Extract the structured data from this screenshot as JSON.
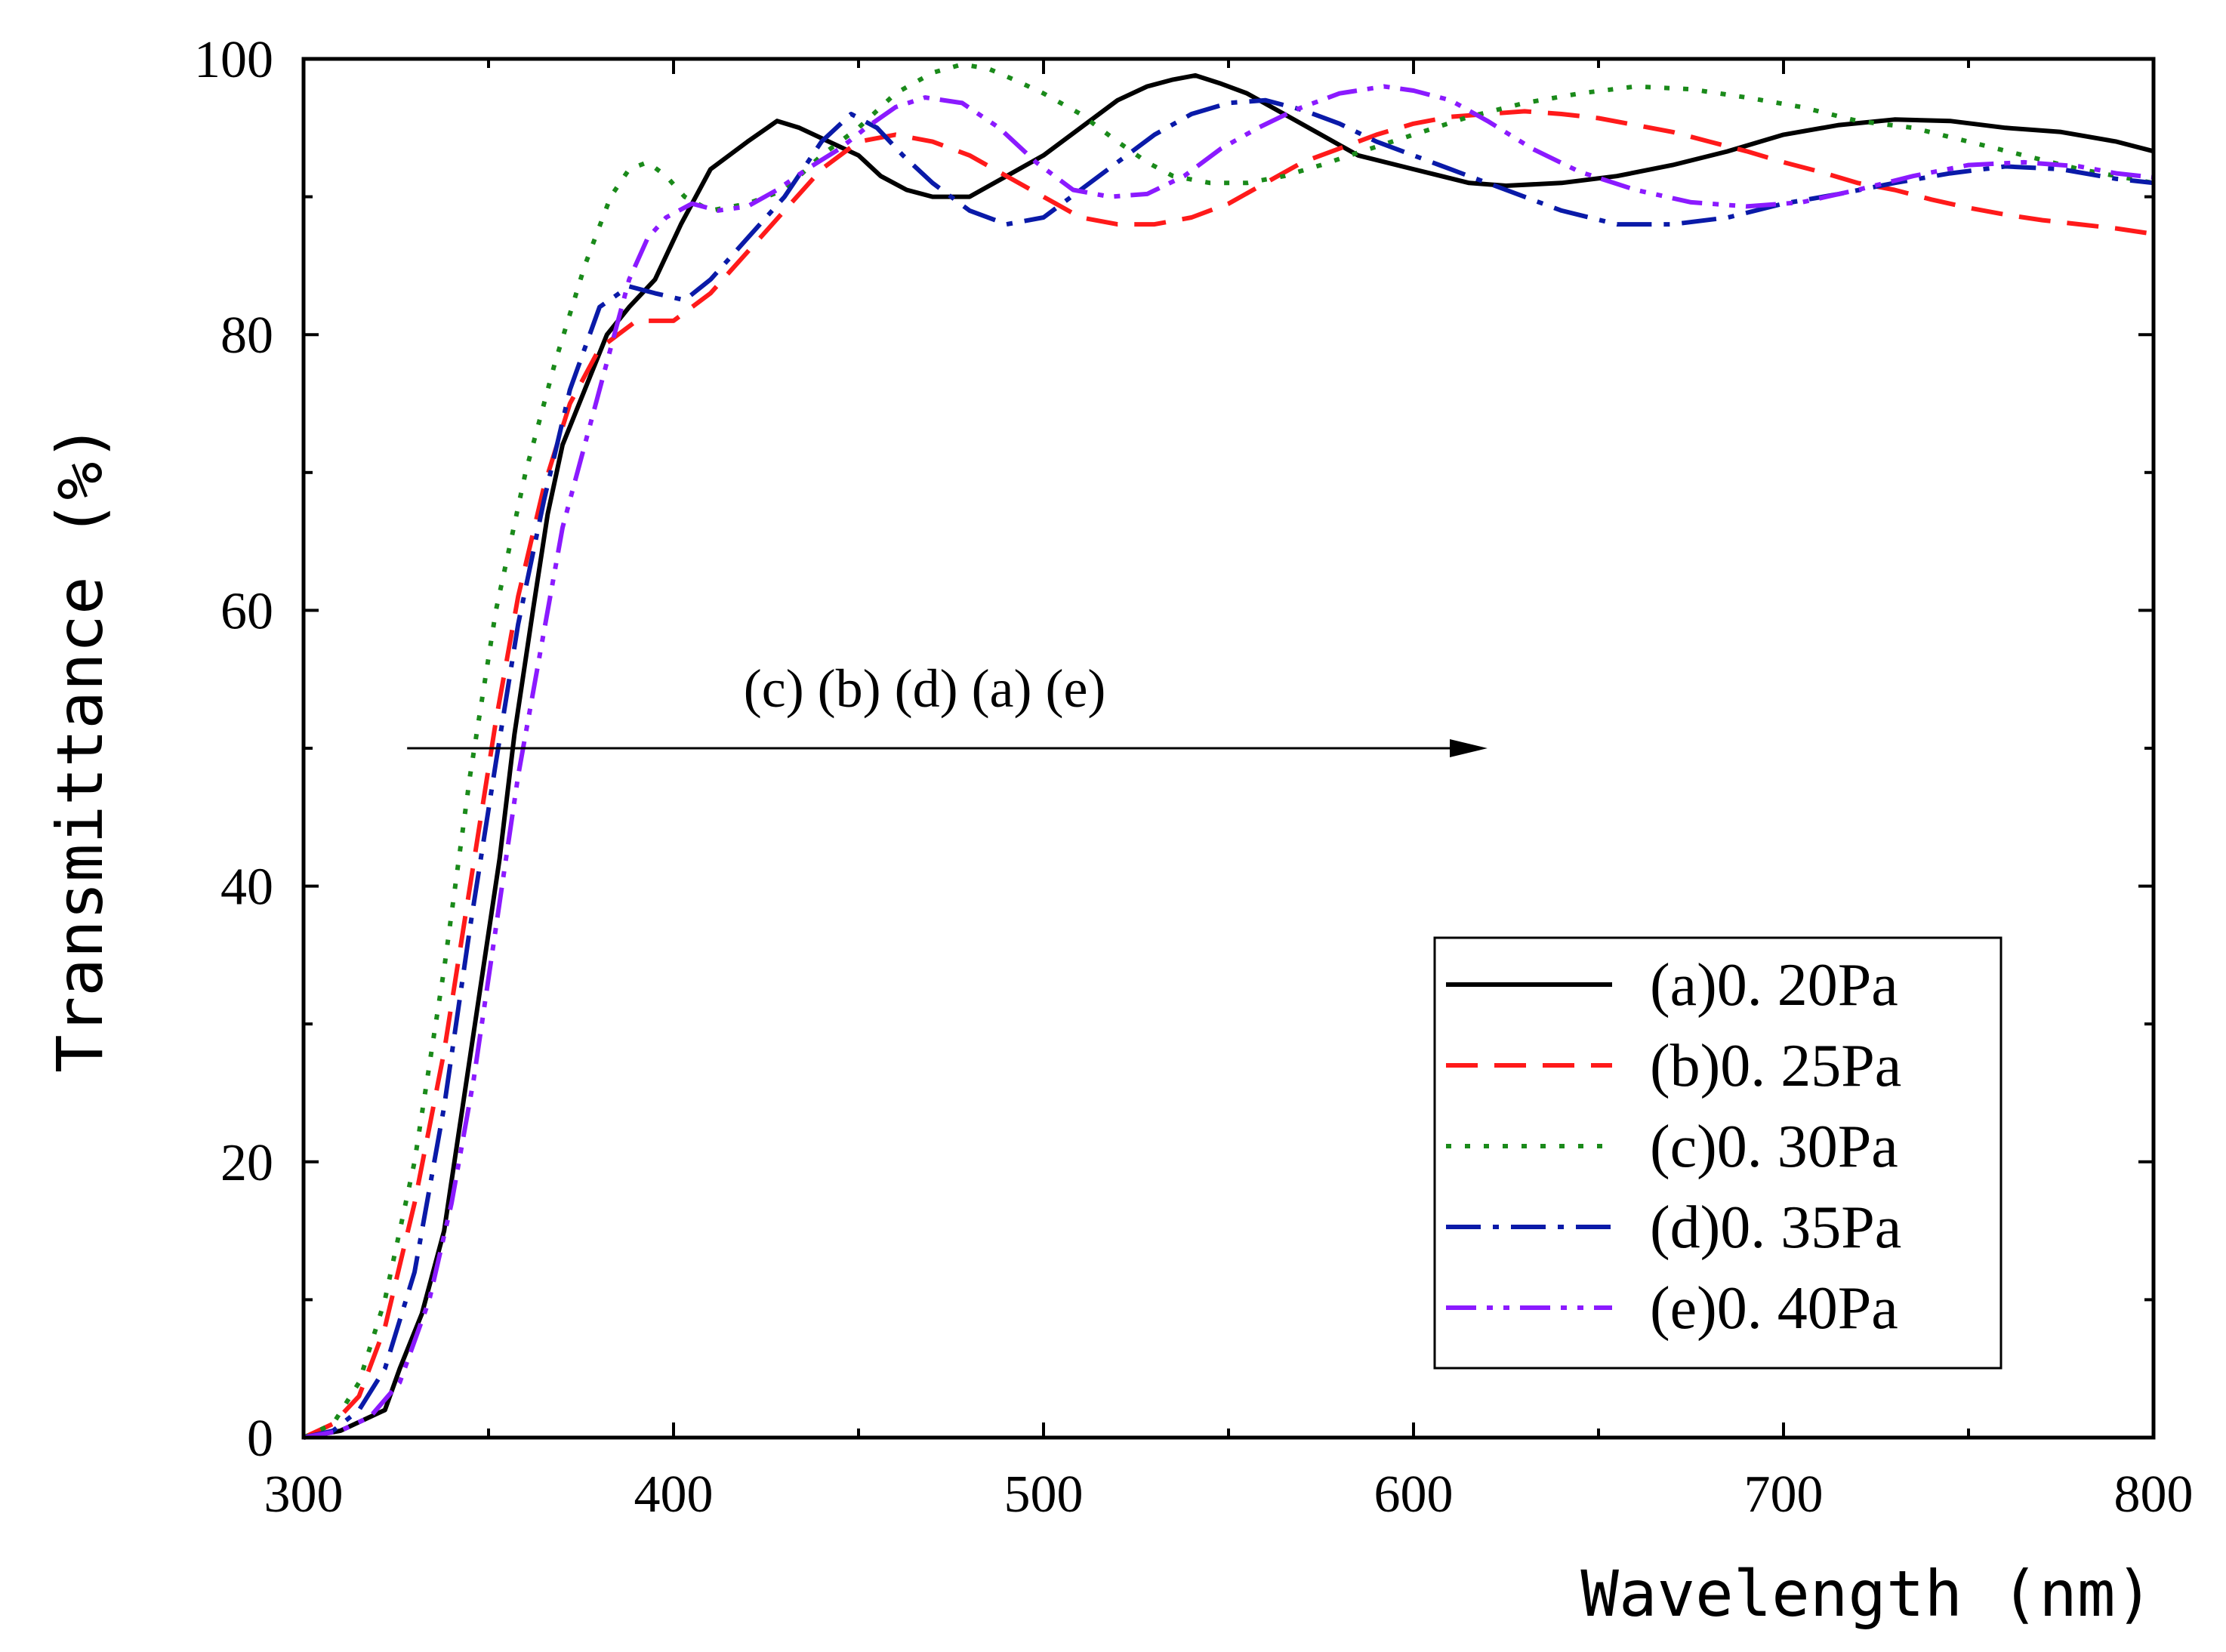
{
  "chart_data": {
    "type": "line",
    "title": "",
    "xlabel": "Wavelength (nm)",
    "ylabel": "Transmittance (%)",
    "xlim": [
      300,
      800
    ],
    "ylim": [
      0,
      100
    ],
    "xticks": [
      300,
      400,
      500,
      600,
      700,
      800
    ],
    "yticks": [
      0,
      20,
      40,
      60,
      80,
      100
    ],
    "grid": false,
    "legend_position": "bottom-right",
    "annotation": {
      "text": "(c) (b) (d) (a) (e)",
      "arrow_from": [
        328,
        50
      ],
      "arrow_to": [
        620,
        50
      ]
    },
    "series": [
      {
        "name": "(a)0. 20Pa",
        "color": "#000000",
        "dash": "solid",
        "x": [
          300,
          310,
          322,
          326,
          332,
          338,
          343,
          348,
          353,
          357,
          362,
          366,
          370,
          376,
          382,
          388,
          395,
          402,
          410,
          420,
          428,
          434,
          442,
          450,
          456,
          463,
          470,
          480,
          490,
          500,
          510,
          520,
          528,
          535,
          541,
          548,
          555,
          565,
          575,
          585,
          600,
          615,
          625,
          640,
          655,
          670,
          685,
          700,
          715,
          730,
          745,
          760,
          775,
          790,
          800
        ],
        "y": [
          0,
          0.5,
          2,
          5,
          9,
          15,
          24,
          33,
          42,
          51,
          60,
          67,
          72,
          76,
          80,
          82,
          84,
          88,
          92,
          94,
          95.5,
          95,
          94,
          93,
          91.5,
          90.5,
          90,
          90,
          91.5,
          93,
          95,
          97,
          98,
          98.5,
          98.8,
          98.2,
          97.5,
          96,
          94.5,
          93,
          92,
          91,
          90.8,
          91,
          91.5,
          92.3,
          93.3,
          94.5,
          95.2,
          95.6,
          95.5,
          95,
          94.7,
          94,
          93.3
        ]
      },
      {
        "name": "(b)0. 25Pa",
        "color": "#ff1a1a",
        "dash": "dashed",
        "x": [
          300,
          308,
          315,
          322,
          330,
          338,
          345,
          352,
          358,
          365,
          372,
          380,
          390,
          400,
          410,
          420,
          430,
          440,
          450,
          460,
          470,
          480,
          490,
          500,
          510,
          520,
          530,
          540,
          550,
          560,
          570,
          580,
          590,
          600,
          610,
          620,
          630,
          640,
          650,
          660,
          670,
          680,
          690,
          700,
          710,
          720,
          730,
          740,
          750,
          760,
          770,
          780,
          790,
          800
        ],
        "y": [
          0,
          1,
          3,
          8,
          17,
          28,
          40,
          52,
          61,
          69,
          75,
          79,
          81,
          81,
          83,
          86,
          89,
          92,
          94,
          94.5,
          94,
          93,
          91.5,
          90,
          88.5,
          88,
          88,
          88.5,
          89.5,
          91,
          92.5,
          93.5,
          94.5,
          95.3,
          95.8,
          96,
          96.2,
          96,
          95.7,
          95.2,
          94.7,
          94,
          93.3,
          92.5,
          91.8,
          91,
          90.5,
          89.8,
          89.2,
          88.7,
          88.3,
          88,
          87.7,
          87.3
        ]
      },
      {
        "name": "(c)0. 30Pa",
        "color": "#1a8a1a",
        "dash": "dotted",
        "x": [
          300,
          308,
          315,
          322,
          330,
          338,
          345,
          352,
          360,
          368,
          376,
          383,
          388,
          393,
          398,
          403,
          410,
          420,
          430,
          440,
          450,
          460,
          470,
          478,
          485,
          492,
          500,
          510,
          520,
          528,
          535,
          545,
          555,
          565,
          575,
          585,
          600,
          615,
          630,
          645,
          660,
          675,
          690,
          705,
          720,
          735,
          750,
          765,
          780,
          790,
          800
        ],
        "y": [
          0,
          1,
          4,
          10,
          20,
          34,
          48,
          60,
          70,
          78,
          85,
          90,
          92,
          92.5,
          91.5,
          90,
          89,
          89.5,
          90.5,
          93,
          95,
          97.5,
          99,
          99.6,
          99.3,
          98.5,
          97.5,
          96,
          94,
          92.5,
          91.5,
          91,
          91,
          91.5,
          92.3,
          93.2,
          94.5,
          95.8,
          96.8,
          97.5,
          98,
          97.8,
          97.2,
          96.5,
          95.5,
          95,
          94,
          93,
          92,
          91.5,
          91
        ]
      },
      {
        "name": "(d)0. 35Pa",
        "color": "#0a1aa8",
        "dash": "dashdot",
        "x": [
          300,
          308,
          315,
          322,
          330,
          338,
          345,
          352,
          358,
          365,
          372,
          380,
          388,
          395,
          403,
          410,
          420,
          430,
          440,
          448,
          455,
          462,
          470,
          480,
          490,
          500,
          510,
          520,
          530,
          540,
          550,
          560,
          570,
          580,
          590,
          600,
          610,
          625,
          640,
          655,
          670,
          685,
          700,
          715,
          730,
          745,
          760,
          775,
          790,
          800
        ],
        "y": [
          0,
          0.5,
          2,
          5,
          12,
          24,
          37,
          49,
          59,
          68,
          76,
          82,
          83.5,
          83,
          82.5,
          84,
          87,
          90,
          94,
          96,
          95,
          93,
          91,
          89,
          88,
          88.5,
          90.5,
          92.5,
          94.5,
          96,
          96.8,
          97,
          96.3,
          95.3,
          94,
          93,
          92,
          90.5,
          89,
          88,
          88,
          88.5,
          89.5,
          90.2,
          91,
          91.7,
          92.2,
          92,
          91.3,
          91
        ]
      },
      {
        "name": "(e)0. 40Pa",
        "color": "#8b1aff",
        "dash": "dashdotdot",
        "x": [
          300,
          310,
          318,
          326,
          334,
          340,
          346,
          352,
          358,
          364,
          370,
          376,
          382,
          388,
          393,
          398,
          405,
          412,
          420,
          428,
          436,
          445,
          452,
          460,
          468,
          478,
          488,
          498,
          508,
          518,
          528,
          538,
          548,
          558,
          568,
          580,
          592,
          600,
          610,
          620,
          632,
          645,
          660,
          675,
          690,
          705,
          720,
          735,
          750,
          765,
          780,
          790,
          800
        ],
        "y": [
          0,
          0.5,
          1.5,
          4,
          10,
          17,
          26,
          37,
          48,
          57,
          66,
          72,
          78,
          84,
          87,
          88.5,
          89.5,
          89,
          89.3,
          90.5,
          92,
          93.5,
          95,
          96.5,
          97.2,
          96.8,
          95,
          92.5,
          90.5,
          90,
          90.2,
          91.5,
          93.5,
          95,
          96.3,
          97.5,
          98,
          97.7,
          97,
          95.5,
          93.5,
          91.8,
          90.5,
          89.6,
          89.3,
          89.6,
          90.5,
          91.5,
          92.3,
          92.5,
          92.2,
          91.7,
          91.4
        ]
      }
    ]
  }
}
